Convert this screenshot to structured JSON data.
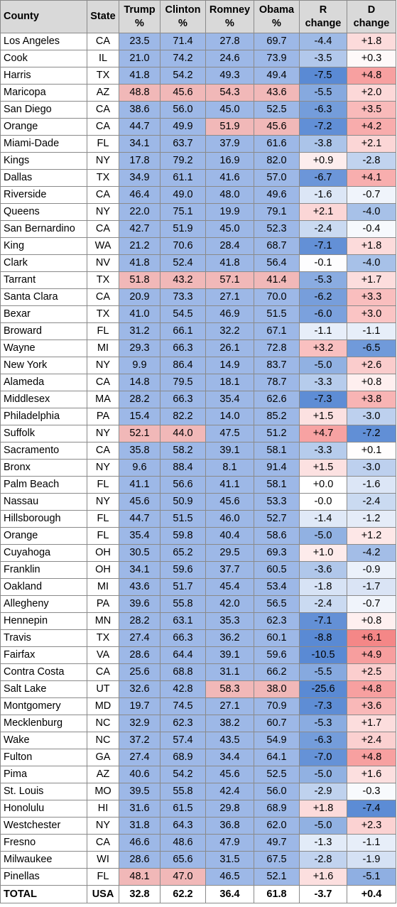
{
  "headers": {
    "county": "County",
    "state": "State",
    "trump": [
      "Trump",
      "%"
    ],
    "clinton": [
      "Clinton",
      "%"
    ],
    "romney": [
      "Romney",
      "%"
    ],
    "obama": [
      "Obama",
      "%"
    ],
    "r_change": [
      "R",
      "change"
    ],
    "d_change": [
      "D",
      "change"
    ]
  },
  "colors": {
    "dem_win": "#9db8e7",
    "rep_win": "#f1b8b8",
    "neutral": "#ffffff",
    "strong_red": "#f26b6b",
    "strong_blue": "#5a8ad4"
  },
  "rows": [
    [
      "Los Angeles",
      "CA",
      "23.5",
      "71.4",
      "27.8",
      "69.7",
      "-4.4",
      "+1.8"
    ],
    [
      "Cook",
      "IL",
      "21.0",
      "74.2",
      "24.6",
      "73.9",
      "-3.5",
      "+0.3"
    ],
    [
      "Harris",
      "TX",
      "41.8",
      "54.2",
      "49.3",
      "49.4",
      "-7.5",
      "+4.8"
    ],
    [
      "Maricopa",
      "AZ",
      "48.8",
      "45.6",
      "54.3",
      "43.6",
      "-5.5",
      "+2.0"
    ],
    [
      "San Diego",
      "CA",
      "38.6",
      "56.0",
      "45.0",
      "52.5",
      "-6.3",
      "+3.5"
    ],
    [
      "Orange",
      "CA",
      "44.7",
      "49.9",
      "51.9",
      "45.6",
      "-7.2",
      "+4.2"
    ],
    [
      "Miami-Dade",
      "FL",
      "34.1",
      "63.7",
      "37.9",
      "61.6",
      "-3.8",
      "+2.1"
    ],
    [
      "Kings",
      "NY",
      "17.8",
      "79.2",
      "16.9",
      "82.0",
      "+0.9",
      "-2.8"
    ],
    [
      "Dallas",
      "TX",
      "34.9",
      "61.1",
      "41.6",
      "57.0",
      "-6.7",
      "+4.1"
    ],
    [
      "Riverside",
      "CA",
      "46.4",
      "49.0",
      "48.0",
      "49.6",
      "-1.6",
      "-0.7"
    ],
    [
      "Queens",
      "NY",
      "22.0",
      "75.1",
      "19.9",
      "79.1",
      "+2.1",
      "-4.0"
    ],
    [
      "San Bernardino",
      "CA",
      "42.7",
      "51.9",
      "45.0",
      "52.3",
      "-2.4",
      "-0.4"
    ],
    [
      "King",
      "WA",
      "21.2",
      "70.6",
      "28.4",
      "68.7",
      "-7.1",
      "+1.8"
    ],
    [
      "Clark",
      "NV",
      "41.8",
      "52.4",
      "41.8",
      "56.4",
      "-0.1",
      "-4.0"
    ],
    [
      "Tarrant",
      "TX",
      "51.8",
      "43.2",
      "57.1",
      "41.4",
      "-5.3",
      "+1.7"
    ],
    [
      "Santa Clara",
      "CA",
      "20.9",
      "73.3",
      "27.1",
      "70.0",
      "-6.2",
      "+3.3"
    ],
    [
      "Bexar",
      "TX",
      "41.0",
      "54.5",
      "46.9",
      "51.5",
      "-6.0",
      "+3.0"
    ],
    [
      "Broward",
      "FL",
      "31.2",
      "66.1",
      "32.2",
      "67.1",
      "-1.1",
      "-1.1"
    ],
    [
      "Wayne",
      "MI",
      "29.3",
      "66.3",
      "26.1",
      "72.8",
      "+3.2",
      "-6.5"
    ],
    [
      "New York",
      "NY",
      "9.9",
      "86.4",
      "14.9",
      "83.7",
      "-5.0",
      "+2.6"
    ],
    [
      "Alameda",
      "CA",
      "14.8",
      "79.5",
      "18.1",
      "78.7",
      "-3.3",
      "+0.8"
    ],
    [
      "Middlesex",
      "MA",
      "28.2",
      "66.3",
      "35.4",
      "62.6",
      "-7.3",
      "+3.8"
    ],
    [
      "Philadelphia",
      "PA",
      "15.4",
      "82.2",
      "14.0",
      "85.2",
      "+1.5",
      "-3.0"
    ],
    [
      "Suffolk",
      "NY",
      "52.1",
      "44.0",
      "47.5",
      "51.2",
      "+4.7",
      "-7.2"
    ],
    [
      "Sacramento",
      "CA",
      "35.8",
      "58.2",
      "39.1",
      "58.1",
      "-3.3",
      "+0.1"
    ],
    [
      "Bronx",
      "NY",
      "9.6",
      "88.4",
      "8.1",
      "91.4",
      "+1.5",
      "-3.0"
    ],
    [
      "Palm Beach",
      "FL",
      "41.1",
      "56.6",
      "41.1",
      "58.1",
      "+0.0",
      "-1.6"
    ],
    [
      "Nassau",
      "NY",
      "45.6",
      "50.9",
      "45.6",
      "53.3",
      "-0.0",
      "-2.4"
    ],
    [
      "Hillsborough",
      "FL",
      "44.7",
      "51.5",
      "46.0",
      "52.7",
      "-1.4",
      "-1.2"
    ],
    [
      "Orange",
      "FL",
      "35.4",
      "59.8",
      "40.4",
      "58.6",
      "-5.0",
      "+1.2"
    ],
    [
      "Cuyahoga",
      "OH",
      "30.5",
      "65.2",
      "29.5",
      "69.3",
      "+1.0",
      "-4.2"
    ],
    [
      "Franklin",
      "OH",
      "34.1",
      "59.6",
      "37.7",
      "60.5",
      "-3.6",
      "-0.9"
    ],
    [
      "Oakland",
      "MI",
      "43.6",
      "51.7",
      "45.4",
      "53.4",
      "-1.8",
      "-1.7"
    ],
    [
      "Allegheny",
      "PA",
      "39.6",
      "55.8",
      "42.0",
      "56.5",
      "-2.4",
      "-0.7"
    ],
    [
      "Hennepin",
      "MN",
      "28.2",
      "63.1",
      "35.3",
      "62.3",
      "-7.1",
      "+0.8"
    ],
    [
      "Travis",
      "TX",
      "27.4",
      "66.3",
      "36.2",
      "60.1",
      "-8.8",
      "+6.1"
    ],
    [
      "Fairfax",
      "VA",
      "28.6",
      "64.4",
      "39.1",
      "59.6",
      "-10.5",
      "+4.9"
    ],
    [
      "Contra Costa",
      "CA",
      "25.6",
      "68.8",
      "31.1",
      "66.2",
      "-5.5",
      "+2.5"
    ],
    [
      "Salt Lake",
      "UT",
      "32.6",
      "42.8",
      "58.3",
      "38.0",
      "-25.6",
      "+4.8"
    ],
    [
      "Montgomery",
      "MD",
      "19.7",
      "74.5",
      "27.1",
      "70.9",
      "-7.3",
      "+3.6"
    ],
    [
      "Mecklenburg",
      "NC",
      "32.9",
      "62.3",
      "38.2",
      "60.7",
      "-5.3",
      "+1.7"
    ],
    [
      "Wake",
      "NC",
      "37.2",
      "57.4",
      "43.5",
      "54.9",
      "-6.3",
      "+2.4"
    ],
    [
      "Fulton",
      "GA",
      "27.4",
      "68.9",
      "34.4",
      "64.1",
      "-7.0",
      "+4.8"
    ],
    [
      "Pima",
      "AZ",
      "40.6",
      "54.2",
      "45.6",
      "52.5",
      "-5.0",
      "+1.6"
    ],
    [
      "St. Louis",
      "MO",
      "39.5",
      "55.8",
      "42.4",
      "56.0",
      "-2.9",
      "-0.3"
    ],
    [
      "Honolulu",
      "HI",
      "31.6",
      "61.5",
      "29.8",
      "68.9",
      "+1.8",
      "-7.4"
    ],
    [
      "Westchester",
      "NY",
      "31.8",
      "64.3",
      "36.8",
      "62.0",
      "-5.0",
      "+2.3"
    ],
    [
      "Fresno",
      "CA",
      "46.6",
      "48.6",
      "47.9",
      "49.7",
      "-1.3",
      "-1.1"
    ],
    [
      "Milwaukee",
      "WI",
      "28.6",
      "65.6",
      "31.5",
      "67.5",
      "-2.8",
      "-1.9"
    ],
    [
      "Pinellas",
      "FL",
      "48.1",
      "47.0",
      "46.5",
      "52.1",
      "+1.6",
      "-5.1"
    ]
  ],
  "total": [
    "TOTAL",
    "USA",
    "32.8",
    "62.2",
    "36.4",
    "61.8",
    "-3.7",
    "+0.4"
  ]
}
